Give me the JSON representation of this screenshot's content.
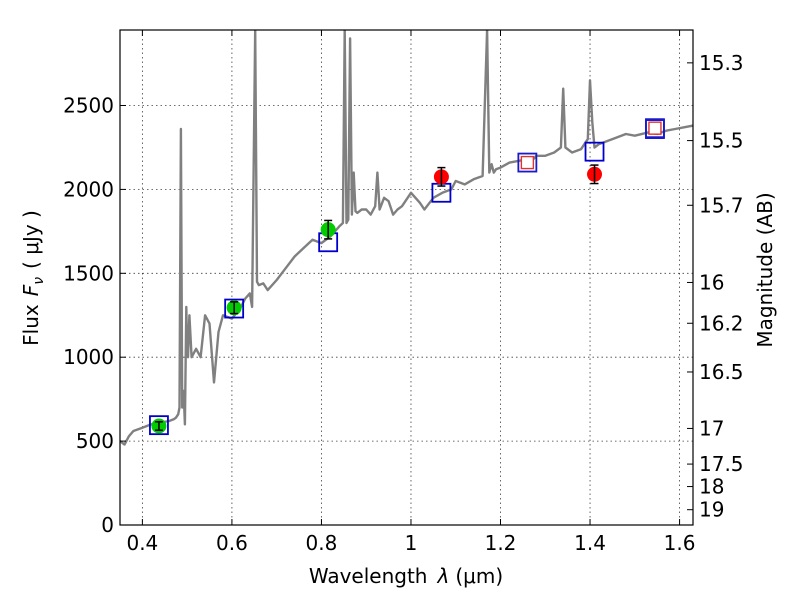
{
  "chart_data": {
    "type": "line",
    "title": "",
    "xlabel_text": "Wavelength",
    "xlabel_symbol": "λ",
    "xlabel_unit": "(μm)",
    "ylabel_text": "Flux",
    "ylabel_symbol": "F",
    "ylabel_subscript": "ν",
    "ylabel_unit": "( μJy )",
    "y2label": "Magnitude (AB)",
    "xlim": [
      0.35,
      1.63
    ],
    "ylim": [
      0,
      2950
    ],
    "x_ticks": [
      0.4,
      0.6,
      0.8,
      1.0,
      1.2,
      1.4,
      1.6
    ],
    "x_tick_labels": [
      "0.4",
      "0.6",
      "0.8",
      "1",
      "1.2",
      "1.4",
      "1.6"
    ],
    "y_ticks": [
      0,
      500,
      1000,
      1500,
      2000,
      2500
    ],
    "y_tick_labels": [
      "0",
      "500",
      "1000",
      "1500",
      "2000",
      "2500"
    ],
    "mag_ticks": [
      15.3,
      15.5,
      15.7,
      16,
      16.2,
      16.5,
      17,
      17.5,
      18,
      19
    ],
    "mag_tick_labels": [
      "15.3",
      "15.5",
      "15.7",
      "16",
      "16.2",
      "16.5",
      "17",
      "17.5",
      "18",
      "19"
    ],
    "grid": true,
    "spectrum": {
      "name": "model spectrum",
      "color": "#808080",
      "x": [
        0.35,
        0.36,
        0.37,
        0.38,
        0.4,
        0.42,
        0.44,
        0.46,
        0.47,
        0.475,
        0.48,
        0.483,
        0.486,
        0.489,
        0.492,
        0.495,
        0.498,
        0.5,
        0.502,
        0.505,
        0.51,
        0.52,
        0.53,
        0.54,
        0.55,
        0.56,
        0.57,
        0.58,
        0.6,
        0.62,
        0.63,
        0.64,
        0.645,
        0.652,
        0.656,
        0.66,
        0.67,
        0.68,
        0.7,
        0.72,
        0.74,
        0.76,
        0.78,
        0.8,
        0.82,
        0.84,
        0.848,
        0.852,
        0.856,
        0.86,
        0.864,
        0.868,
        0.872,
        0.876,
        0.88,
        0.89,
        0.9,
        0.91,
        0.92,
        0.925,
        0.93,
        0.94,
        0.95,
        0.96,
        0.97,
        0.98,
        1.0,
        1.02,
        1.03,
        1.05,
        1.07,
        1.09,
        1.1,
        1.12,
        1.14,
        1.16,
        1.17,
        1.175,
        1.18,
        1.185,
        1.19,
        1.2,
        1.22,
        1.24,
        1.26,
        1.27,
        1.28,
        1.3,
        1.32,
        1.335,
        1.34,
        1.345,
        1.36,
        1.38,
        1.395,
        1.4,
        1.405,
        1.41,
        1.42,
        1.45,
        1.48,
        1.5,
        1.53,
        1.55,
        1.57,
        1.59,
        1.61,
        1.63
      ],
      "y": [
        500,
        480,
        530,
        560,
        580,
        600,
        610,
        620,
        630,
        640,
        660,
        700,
        2360,
        700,
        800,
        600,
        1300,
        1050,
        1000,
        1250,
        1000,
        1050,
        1000,
        1250,
        1200,
        850,
        1150,
        1250,
        1230,
        1300,
        1350,
        1380,
        1300,
        2950,
        1450,
        1430,
        1440,
        1400,
        1460,
        1530,
        1600,
        1650,
        1700,
        1680,
        1720,
        1780,
        1800,
        2950,
        1800,
        1820,
        2900,
        1850,
        2100,
        1870,
        1860,
        1880,
        1880,
        1850,
        1900,
        2100,
        1880,
        1950,
        1930,
        1850,
        1880,
        1900,
        1980,
        1920,
        1880,
        1950,
        1980,
        2000,
        2050,
        2030,
        2060,
        2080,
        2950,
        2100,
        2150,
        2100,
        2120,
        2130,
        2160,
        2170,
        2180,
        2170,
        2200,
        2200,
        2220,
        2250,
        2600,
        2250,
        2220,
        2240,
        2300,
        2650,
        2400,
        2250,
        2270,
        2300,
        2330,
        2320,
        2340,
        2330,
        2350,
        2360,
        2370,
        2380
      ]
    },
    "photometry_green": {
      "name": "green points",
      "color": "#00cc00",
      "x": [
        0.437,
        0.605,
        0.815
      ],
      "y": [
        590,
        1295,
        1760
      ],
      "err": [
        25,
        35,
        55
      ]
    },
    "photometry_red": {
      "name": "red points",
      "color": "#ff0000",
      "x": [
        1.068,
        1.41
      ],
      "y": [
        2075,
        2090
      ],
      "err": [
        55,
        55
      ]
    },
    "synthetic_blue": {
      "name": "blue squares",
      "color": "#0000cc",
      "x": [
        0.437,
        0.605,
        0.815,
        1.068,
        1.41,
        1.545
      ],
      "y": [
        595,
        1290,
        1685,
        1980,
        2225,
        2360
      ]
    },
    "synthetic_small": {
      "name": "small red-edged squares",
      "color": "#dd3333",
      "x": [
        1.26,
        1.545
      ],
      "y": [
        2160,
        2365
      ]
    }
  }
}
